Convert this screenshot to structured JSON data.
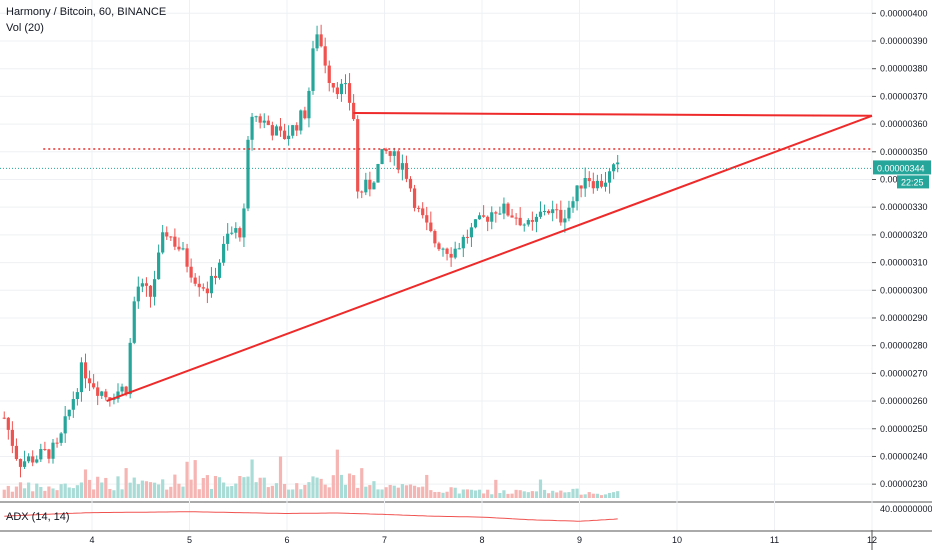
{
  "header": {
    "symbol_line": "Harmony / Bitcoin, 60, BINANCE",
    "volume_label": "Vol (20)"
  },
  "adx": {
    "label": "ADX (14, 14)",
    "axis_value": "40.00000000"
  },
  "price_axis": {
    "ticks": [
      "0.00000400",
      "0.00000390",
      "0.00000380",
      "0.00000370",
      "0.00000360",
      "0.00000350",
      "0.00000340",
      "0.00000330",
      "0.00000320",
      "0.00000310",
      "0.00000300",
      "0.00000290",
      "0.00000280",
      "0.00000270",
      "0.00000260",
      "0.00000250",
      "0.00000240",
      "0.00000230"
    ],
    "current_price": "0.00000344",
    "countdown": "22:25"
  },
  "time_axis": {
    "ticks": [
      "4",
      "5",
      "6",
      "7",
      "8",
      "9",
      "10",
      "11",
      "12"
    ]
  },
  "colors": {
    "up": "#26a69a",
    "down": "#ef5350",
    "trendline": "#ee2a2a",
    "adx": "#ef5350",
    "current": "#26a69a"
  },
  "chart_data": {
    "type": "candlestick",
    "title": "Harmony / Bitcoin, 60, BINANCE",
    "x_range_days": [
      3.1,
      12
    ],
    "y_range": [
      2.25e-06,
      4.03e-06
    ],
    "grid": true,
    "anchors_day_price": [
      [
        3.1,
        2.54e-06
      ],
      [
        3.25,
        2.38e-06
      ],
      [
        3.45,
        2.4e-06
      ],
      [
        3.65,
        2.43e-06
      ],
      [
        3.9,
        2.72e-06
      ],
      [
        4.05,
        2.65e-06
      ],
      [
        4.15,
        2.62e-06
      ],
      [
        4.35,
        2.65e-06
      ],
      [
        4.45,
        3.02e-06
      ],
      [
        4.6,
        2.98e-06
      ],
      [
        4.75,
        3.22e-06
      ],
      [
        4.9,
        3.15e-06
      ],
      [
        5.05,
        3.05e-06
      ],
      [
        5.2,
        3e-06
      ],
      [
        5.4,
        3.2e-06
      ],
      [
        5.55,
        3.22e-06
      ],
      [
        5.62,
        3.64e-06
      ],
      [
        5.8,
        3.6e-06
      ],
      [
        5.95,
        3.55e-06
      ],
      [
        6.05,
        3.58e-06
      ],
      [
        6.2,
        3.65e-06
      ],
      [
        6.3,
        3.95e-06
      ],
      [
        6.45,
        3.75e-06
      ],
      [
        6.6,
        3.72e-06
      ],
      [
        6.68,
        3.65e-06
      ],
      [
        6.72,
        3.35e-06
      ],
      [
        6.85,
        3.38e-06
      ],
      [
        7.0,
        3.5e-06
      ],
      [
        7.2,
        3.45e-06
      ],
      [
        7.35,
        3.28e-06
      ],
      [
        7.5,
        3.18e-06
      ],
      [
        7.7,
        3.14e-06
      ],
      [
        7.85,
        3.2e-06
      ],
      [
        8.0,
        3.25e-06
      ],
      [
        8.15,
        3.3e-06
      ],
      [
        8.35,
        3.27e-06
      ],
      [
        8.5,
        3.22e-06
      ],
      [
        8.65,
        3.3e-06
      ],
      [
        8.8,
        3.26e-06
      ],
      [
        8.95,
        3.33e-06
      ],
      [
        9.05,
        3.42e-06
      ],
      [
        9.2,
        3.38e-06
      ],
      [
        9.35,
        3.43e-06
      ],
      [
        9.4,
        3.44e-06
      ]
    ],
    "volume_profile": [
      [
        3.1,
        0.35
      ],
      [
        3.6,
        0.3
      ],
      [
        4.0,
        0.5
      ],
      [
        4.5,
        0.45
      ],
      [
        5.0,
        0.55
      ],
      [
        5.5,
        0.4
      ],
      [
        5.62,
        1.0
      ],
      [
        5.8,
        0.3
      ],
      [
        6.2,
        0.5
      ],
      [
        6.35,
        0.6
      ],
      [
        6.7,
        0.55
      ],
      [
        7.0,
        0.35
      ],
      [
        7.5,
        0.25
      ],
      [
        8.0,
        0.2
      ],
      [
        8.5,
        0.18
      ],
      [
        9.0,
        0.2
      ],
      [
        9.4,
        0.15
      ]
    ],
    "adx_series": [
      [
        3.1,
        0.4
      ],
      [
        3.5,
        0.3
      ],
      [
        4.0,
        0.2
      ],
      [
        4.5,
        0.18
      ],
      [
        5.0,
        0.15
      ],
      [
        5.5,
        0.2
      ],
      [
        6.0,
        0.25
      ],
      [
        6.5,
        0.22
      ],
      [
        7.0,
        0.3
      ],
      [
        7.5,
        0.4
      ],
      [
        8.0,
        0.45
      ],
      [
        8.5,
        0.6
      ],
      [
        9.0,
        0.68
      ],
      [
        9.4,
        0.55
      ]
    ],
    "trendlines": [
      {
        "name": "support",
        "points": [
          [
            4.15,
            2.6e-06
          ],
          [
            12.0,
            3.63e-06
          ]
        ]
      },
      {
        "name": "resistance",
        "points": [
          [
            6.68,
            3.64e-06
          ],
          [
            12.0,
            3.63e-06
          ]
        ]
      }
    ],
    "levels": [
      {
        "price": 3.51e-06,
        "from_day": 3.5,
        "to_day": 9.98,
        "style": "dotted"
      }
    ]
  }
}
